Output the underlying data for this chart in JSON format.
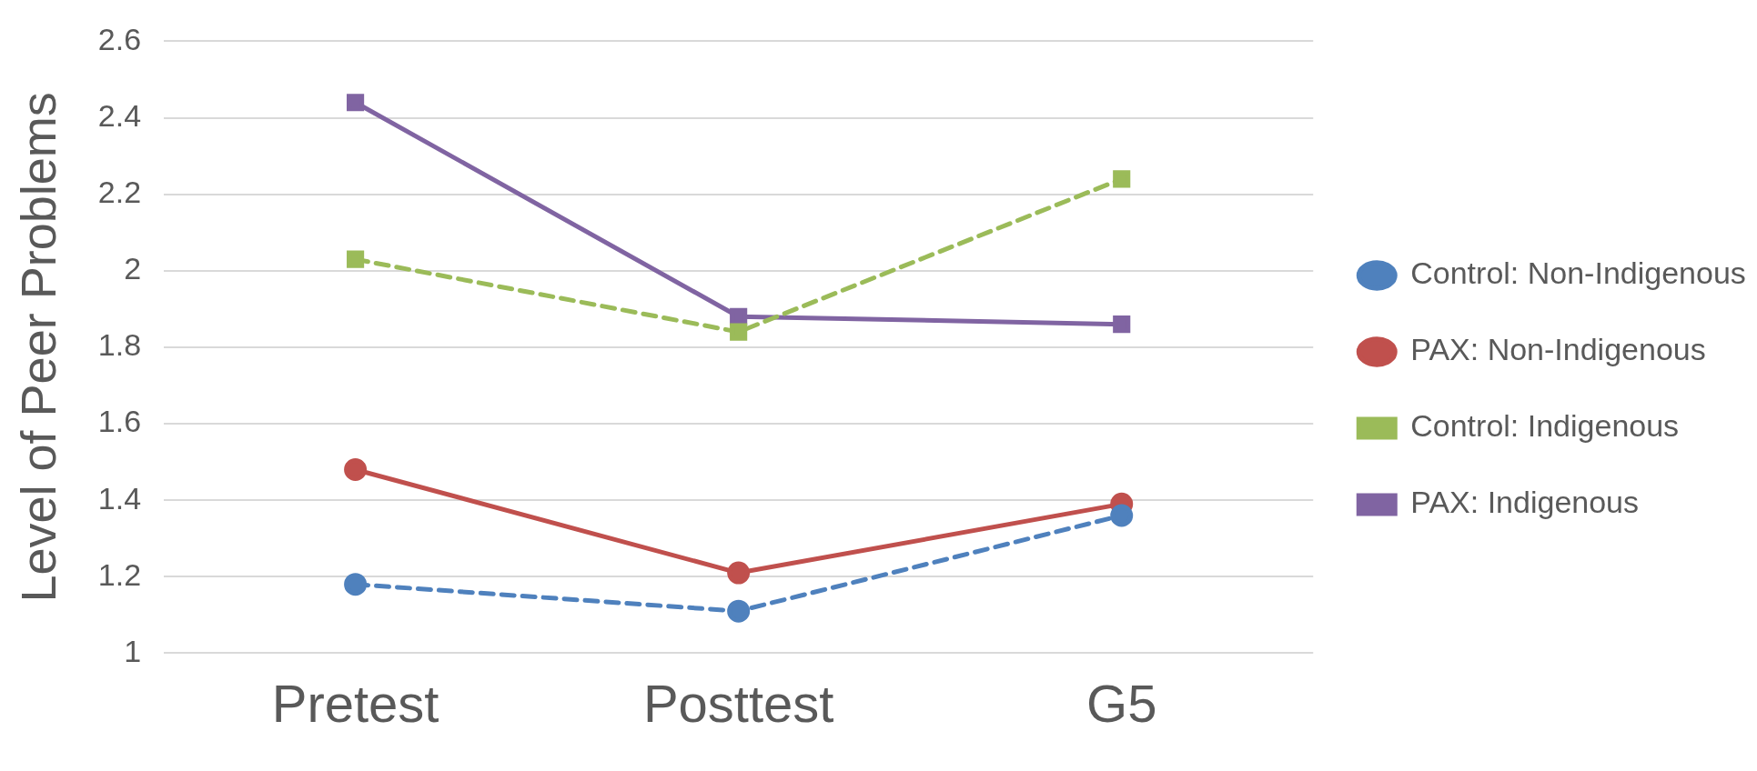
{
  "chart_data": {
    "type": "line",
    "ylabel": "Level of Peer Problems",
    "categories": [
      "Pretest",
      "Posttest",
      "G5"
    ],
    "series": [
      {
        "name": "Control: Non-Indigenous",
        "color": "#4f81bd",
        "values": [
          1.18,
          1.11,
          1.36
        ],
        "marker": "circle",
        "line_style": "dashed"
      },
      {
        "name": "PAX: Non-Indigenous",
        "color": "#c0504d",
        "values": [
          1.48,
          1.21,
          1.39
        ],
        "marker": "circle",
        "line_style": "solid"
      },
      {
        "name": "Control: Indigenous",
        "color": "#9bbb59",
        "values": [
          2.03,
          1.84,
          2.24
        ],
        "marker": "square",
        "line_style": "dashed"
      },
      {
        "name": "PAX: Indigenous",
        "color": "#8064a2",
        "values": [
          2.44,
          1.88,
          1.86
        ],
        "marker": "square",
        "line_style": "solid"
      }
    ],
    "ylim": [
      1,
      2.6
    ],
    "yticks": [
      1,
      1.2,
      1.4,
      1.6,
      1.8,
      2,
      2.2,
      2.4,
      2.6
    ],
    "grid": "y",
    "legend": "right"
  }
}
